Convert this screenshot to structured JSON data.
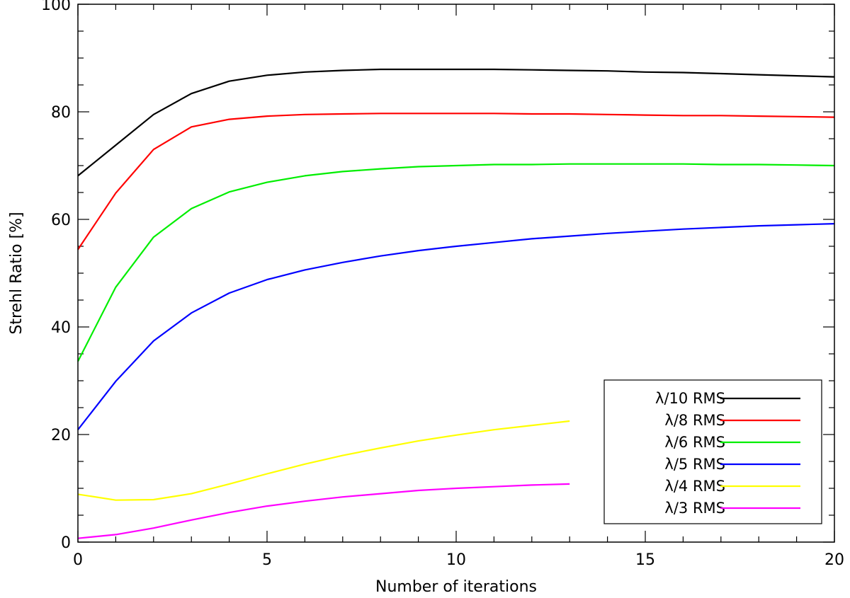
{
  "chart_data": {
    "type": "line",
    "title": "",
    "xlabel": "Number of iterations",
    "ylabel": "Strehl Ratio [%]",
    "xlim": [
      0,
      20
    ],
    "ylim": [
      0,
      100
    ],
    "x_major_ticks": [
      0,
      5,
      10,
      15,
      20
    ],
    "x_tick_labels": [
      "0",
      "5",
      "10",
      "15",
      "20"
    ],
    "y_major_ticks": [
      0,
      20,
      40,
      60,
      80,
      100
    ],
    "y_tick_labels": [
      "0",
      "20",
      "40",
      "60",
      "80",
      "100"
    ],
    "legend_position": "bottom-right",
    "series": [
      {
        "name": "λ/10 RMS",
        "color": "#000000",
        "x": [
          0,
          1,
          2,
          3,
          4,
          5,
          6,
          7,
          8,
          9,
          10,
          11,
          12,
          13,
          14,
          15,
          16,
          17,
          18,
          19,
          20
        ],
        "y": [
          68.1,
          73.8,
          79.5,
          83.4,
          85.7,
          86.8,
          87.4,
          87.7,
          87.9,
          87.9,
          87.9,
          87.9,
          87.8,
          87.7,
          87.6,
          87.4,
          87.3,
          87.1,
          86.9,
          86.7,
          86.5
        ]
      },
      {
        "name": "λ/8 RMS",
        "color": "#ff0000",
        "x": [
          0,
          1,
          2,
          3,
          4,
          5,
          6,
          7,
          8,
          9,
          10,
          11,
          12,
          13,
          14,
          15,
          16,
          17,
          18,
          19,
          20
        ],
        "y": [
          54.4,
          64.9,
          73.0,
          77.2,
          78.6,
          79.2,
          79.5,
          79.6,
          79.7,
          79.7,
          79.7,
          79.7,
          79.6,
          79.6,
          79.5,
          79.4,
          79.3,
          79.3,
          79.2,
          79.1,
          79.0
        ]
      },
      {
        "name": "λ/6 RMS",
        "color": "#00ee00",
        "x": [
          0,
          1,
          2,
          3,
          4,
          5,
          6,
          7,
          8,
          9,
          10,
          11,
          12,
          13,
          14,
          15,
          16,
          17,
          18,
          19,
          20
        ],
        "y": [
          33.6,
          47.4,
          56.7,
          62.0,
          65.1,
          66.9,
          68.1,
          68.9,
          69.4,
          69.8,
          70.0,
          70.2,
          70.2,
          70.3,
          70.3,
          70.3,
          70.3,
          70.2,
          70.2,
          70.1,
          70.0
        ]
      },
      {
        "name": "λ/5 RMS",
        "color": "#0000ff",
        "x": [
          0,
          1,
          2,
          3,
          4,
          5,
          6,
          7,
          8,
          9,
          10,
          11,
          12,
          13,
          14,
          15,
          16,
          17,
          18,
          19,
          20
        ],
        "y": [
          20.9,
          29.9,
          37.4,
          42.6,
          46.3,
          48.8,
          50.6,
          52.0,
          53.2,
          54.2,
          55.0,
          55.7,
          56.4,
          56.9,
          57.4,
          57.8,
          58.2,
          58.5,
          58.8,
          59.0,
          59.2
        ]
      },
      {
        "name": "λ/4 RMS",
        "color": "#ffff00",
        "x": [
          0,
          1,
          2,
          3,
          4,
          5,
          6,
          7,
          8,
          9,
          10,
          11,
          12,
          13
        ],
        "y": [
          8.9,
          7.8,
          7.9,
          9.0,
          10.8,
          12.7,
          14.5,
          16.1,
          17.5,
          18.8,
          19.9,
          20.9,
          21.7,
          22.5
        ]
      },
      {
        "name": "λ/3 RMS",
        "color": "#ff00ff",
        "x": [
          0,
          1,
          2,
          3,
          4,
          5,
          6,
          7,
          8,
          9,
          10,
          11,
          12,
          13
        ],
        "y": [
          0.7,
          1.4,
          2.6,
          4.1,
          5.5,
          6.7,
          7.6,
          8.4,
          9.0,
          9.6,
          10.0,
          10.3,
          10.6,
          10.8
        ]
      }
    ]
  }
}
